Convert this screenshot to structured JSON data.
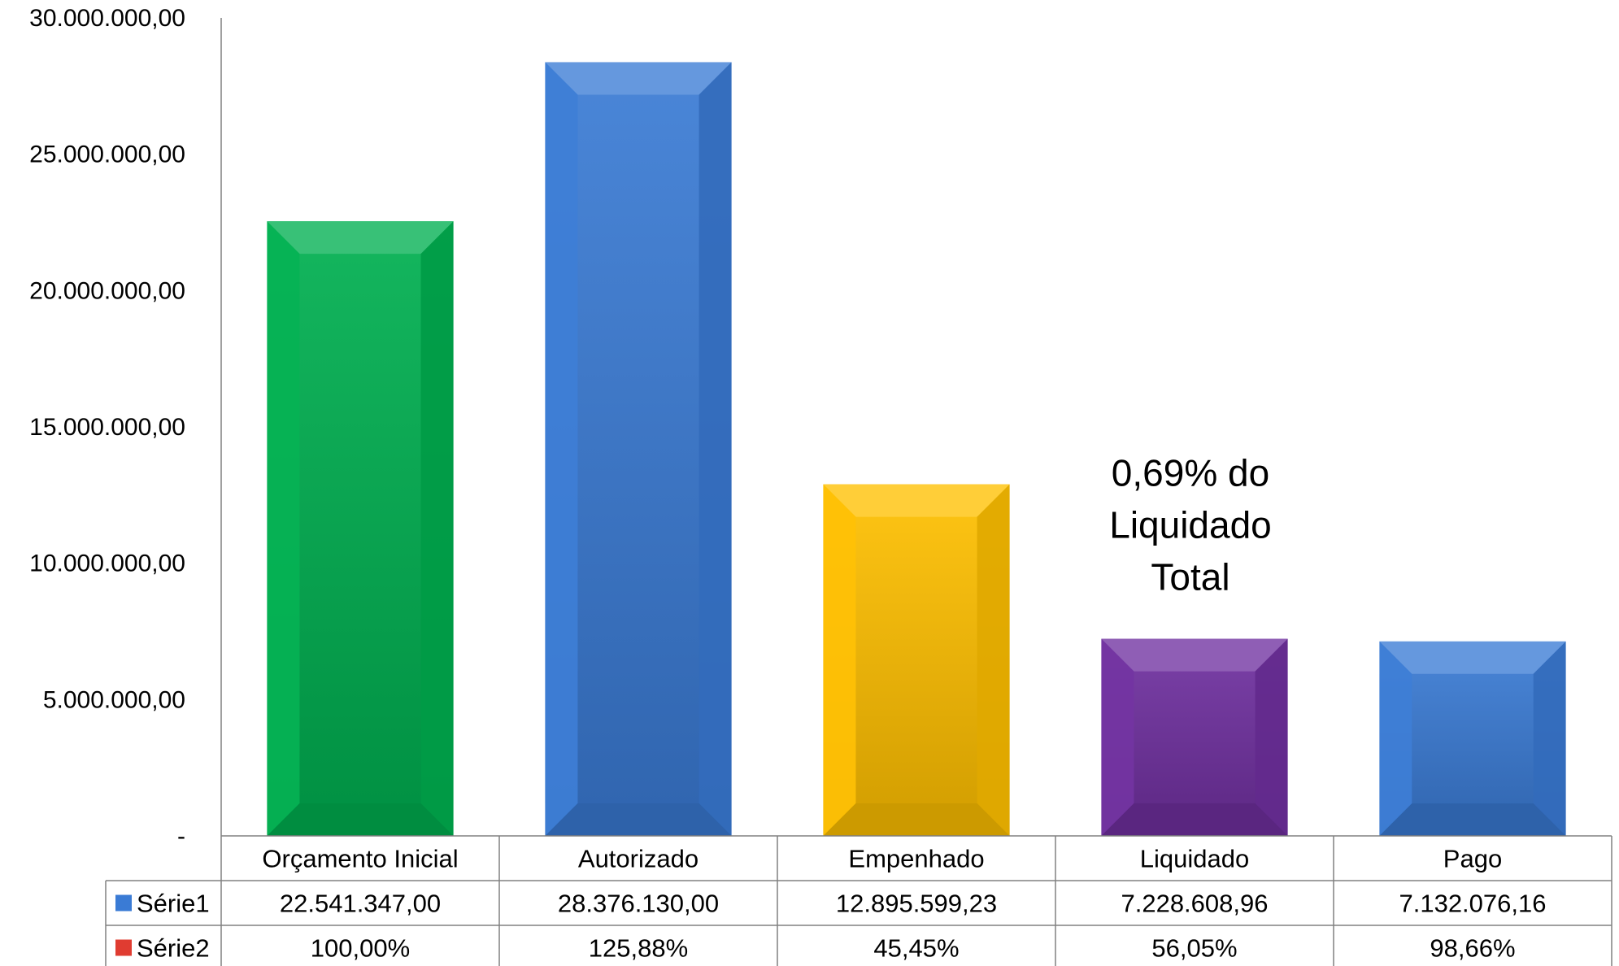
{
  "chart_data": {
    "type": "bar",
    "categories": [
      "Orçamento Inicial",
      "Autorizado",
      "Empenhado",
      "Liquidado",
      "Pago"
    ],
    "series": [
      {
        "name": "Série1",
        "values": [
          22541347.0,
          28376130.0,
          12895599.23,
          7228608.96,
          7132076.16
        ],
        "labels": [
          "22.541.347,00",
          "28.376.130,00",
          "12.895.599,23",
          "7.228.608,96",
          "7.132.076,16"
        ]
      },
      {
        "name": "Série2",
        "values": [
          100.0,
          125.88,
          45.45,
          56.05,
          98.66
        ],
        "labels": [
          "100,00%",
          "125,88%",
          "45,45%",
          "56,05%",
          "98,66%"
        ]
      }
    ],
    "ylim": [
      0,
      30000000
    ],
    "ytick_labels": [
      "-",
      "5.000.000,00",
      "10.000.000,00",
      "15.000.000,00",
      "20.000.000,00",
      "25.000.000,00",
      "30.000.000,00"
    ],
    "bar_colors": [
      "#00b050",
      "#3a7bd5",
      "#ffc000",
      "#7030a0",
      "#3a7bd5"
    ],
    "legend_colors": [
      "#3a7bd5",
      "#e03c31"
    ],
    "legend": "data-table",
    "grid": false,
    "annotation": [
      "0,69% do",
      "Liquidado",
      "Total"
    ]
  }
}
